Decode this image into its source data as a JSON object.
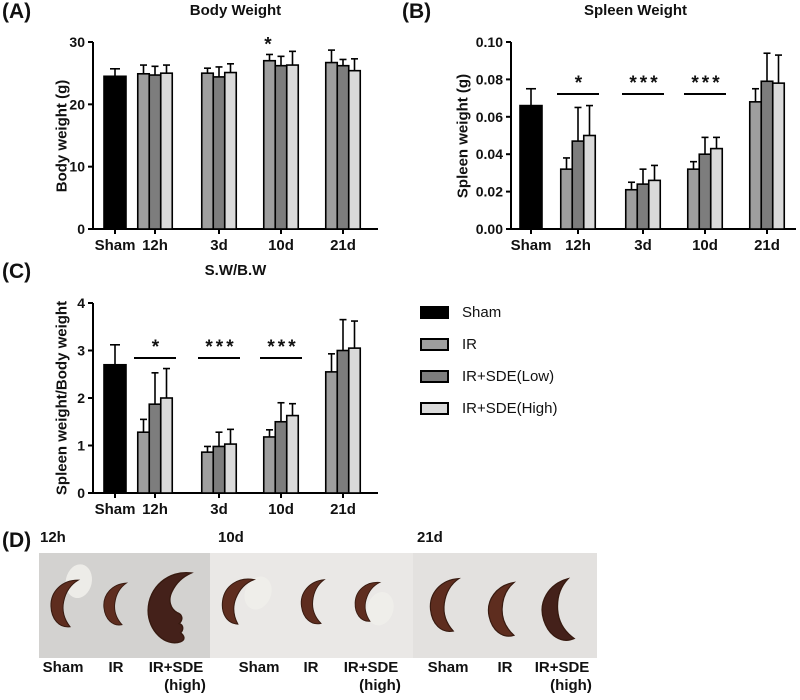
{
  "panels": {
    "a": {
      "label": "(A)"
    },
    "b": {
      "label": "(B)"
    },
    "c": {
      "label": "(C)"
    },
    "d": {
      "label": "(D)"
    }
  },
  "legend": {
    "items": [
      {
        "label": "Sham",
        "color": "#000000"
      },
      {
        "label": "IR",
        "color": "#9e9e9e"
      },
      {
        "label": "IR+SDE(Low)",
        "color": "#7d7d7d"
      },
      {
        "label": "IR+SDE(High)",
        "color": "#dadada"
      }
    ]
  },
  "chart_data": [
    {
      "id": "A",
      "type": "bar",
      "title": "Body Weight",
      "ylabel": "Body weight (g)",
      "ylim": [
        0,
        30
      ],
      "yticks": [
        0,
        10,
        20,
        30
      ],
      "ytick_labels": [
        "0",
        "10",
        "20",
        "30"
      ],
      "categories": [
        "Sham",
        "12h",
        "3d",
        "10d",
        "21d"
      ],
      "series_names": [
        "Sham",
        "IR",
        "IR+SDE(Low)",
        "IR+SDE(High)"
      ],
      "grid": false,
      "groups": [
        {
          "category": "Sham",
          "bars": [
            {
              "series": "Sham",
              "value": 24.5,
              "error": 1.2
            }
          ]
        },
        {
          "category": "12h",
          "bars": [
            {
              "series": "IR",
              "value": 24.9,
              "error": 1.4
            },
            {
              "series": "IR+SDE(Low)",
              "value": 24.7,
              "error": 1.4
            },
            {
              "series": "IR+SDE(High)",
              "value": 25.0,
              "error": 1.3
            }
          ]
        },
        {
          "category": "3d",
          "bars": [
            {
              "series": "IR",
              "value": 25.0,
              "error": 0.8
            },
            {
              "series": "IR+SDE(Low)",
              "value": 24.4,
              "error": 1.6
            },
            {
              "series": "IR+SDE(High)",
              "value": 25.1,
              "error": 1.4
            }
          ]
        },
        {
          "category": "10d",
          "bars": [
            {
              "series": "IR",
              "value": 27.0,
              "error": 1.0,
              "sig": "*"
            },
            {
              "series": "IR+SDE(Low)",
              "value": 26.2,
              "error": 1.5
            },
            {
              "series": "IR+SDE(High)",
              "value": 26.3,
              "error": 2.2
            }
          ]
        },
        {
          "category": "21d",
          "bars": [
            {
              "series": "IR",
              "value": 26.7,
              "error": 2.0
            },
            {
              "series": "IR+SDE(Low)",
              "value": 26.2,
              "error": 1.0
            },
            {
              "series": "IR+SDE(High)",
              "value": 25.4,
              "error": 1.9
            }
          ]
        }
      ]
    },
    {
      "id": "B",
      "type": "bar",
      "title": "Spleen Weight",
      "ylabel": "Spleen weight (g)",
      "ylim": [
        0,
        0.1
      ],
      "yticks": [
        0,
        0.02,
        0.04,
        0.06,
        0.08,
        0.1
      ],
      "ytick_labels": [
        "0.00",
        "0.02",
        "0.04",
        "0.06",
        "0.08",
        "0.10"
      ],
      "categories": [
        "Sham",
        "12h",
        "3d",
        "10d",
        "21d"
      ],
      "series_names": [
        "Sham",
        "IR",
        "IR+SDE(Low)",
        "IR+SDE(High)"
      ],
      "grid": false,
      "groups": [
        {
          "category": "Sham",
          "bars": [
            {
              "series": "Sham",
              "value": 0.066,
              "error": 0.009
            }
          ]
        },
        {
          "category": "12h",
          "sig": "*",
          "bars": [
            {
              "series": "IR",
              "value": 0.032,
              "error": 0.006
            },
            {
              "series": "IR+SDE(Low)",
              "value": 0.047,
              "error": 0.018
            },
            {
              "series": "IR+SDE(High)",
              "value": 0.05,
              "error": 0.016
            }
          ]
        },
        {
          "category": "3d",
          "sig": "***",
          "bars": [
            {
              "series": "IR",
              "value": 0.021,
              "error": 0.004
            },
            {
              "series": "IR+SDE(Low)",
              "value": 0.024,
              "error": 0.008
            },
            {
              "series": "IR+SDE(High)",
              "value": 0.026,
              "error": 0.008
            }
          ]
        },
        {
          "category": "10d",
          "sig": "***",
          "bars": [
            {
              "series": "IR",
              "value": 0.032,
              "error": 0.004
            },
            {
              "series": "IR+SDE(Low)",
              "value": 0.04,
              "error": 0.009
            },
            {
              "series": "IR+SDE(High)",
              "value": 0.043,
              "error": 0.006
            }
          ]
        },
        {
          "category": "21d",
          "bars": [
            {
              "series": "IR",
              "value": 0.068,
              "error": 0.007
            },
            {
              "series": "IR+SDE(Low)",
              "value": 0.079,
              "error": 0.015
            },
            {
              "series": "IR+SDE(High)",
              "value": 0.078,
              "error": 0.015
            }
          ]
        }
      ]
    },
    {
      "id": "C",
      "type": "bar",
      "title": "S.W/B.W",
      "ylabel": "Spleen weight/Body weight",
      "ylim": [
        0,
        4
      ],
      "yticks": [
        0,
        1,
        2,
        3,
        4
      ],
      "ytick_labels": [
        "0",
        "1",
        "2",
        "3",
        "4"
      ],
      "categories": [
        "Sham",
        "12h",
        "3d",
        "10d",
        "21d"
      ],
      "series_names": [
        "Sham",
        "IR",
        "IR+SDE(Low)",
        "IR+SDE(High)"
      ],
      "grid": false,
      "groups": [
        {
          "category": "Sham",
          "bars": [
            {
              "series": "Sham",
              "value": 2.7,
              "error": 0.42
            }
          ]
        },
        {
          "category": "12h",
          "sig": "*",
          "bars": [
            {
              "series": "IR",
              "value": 1.28,
              "error": 0.27
            },
            {
              "series": "IR+SDE(Low)",
              "value": 1.87,
              "error": 0.66
            },
            {
              "series": "IR+SDE(High)",
              "value": 2.0,
              "error": 0.62
            }
          ]
        },
        {
          "category": "3d",
          "sig": "***",
          "bars": [
            {
              "series": "IR",
              "value": 0.86,
              "error": 0.12
            },
            {
              "series": "IR+SDE(Low)",
              "value": 0.98,
              "error": 0.3
            },
            {
              "series": "IR+SDE(High)",
              "value": 1.03,
              "error": 0.31
            }
          ]
        },
        {
          "category": "10d",
          "sig": "***",
          "bars": [
            {
              "series": "IR",
              "value": 1.18,
              "error": 0.15
            },
            {
              "series": "IR+SDE(Low)",
              "value": 1.5,
              "error": 0.4
            },
            {
              "series": "IR+SDE(High)",
              "value": 1.63,
              "error": 0.25
            }
          ]
        },
        {
          "category": "21d",
          "bars": [
            {
              "series": "IR",
              "value": 2.55,
              "error": 0.38
            },
            {
              "series": "IR+SDE(Low)",
              "value": 3.0,
              "error": 0.65
            },
            {
              "series": "IR+SDE(High)",
              "value": 3.05,
              "error": 0.57
            }
          ]
        }
      ]
    }
  ],
  "panel_d": {
    "groups": [
      {
        "time": "12h",
        "samples": [
          {
            "name": "Sham"
          },
          {
            "name": "IR"
          },
          {
            "name": "IR+SDE",
            "sub": "(high)"
          }
        ]
      },
      {
        "time": "10d",
        "samples": [
          {
            "name": "Sham"
          },
          {
            "name": "IR"
          },
          {
            "name": "IR+SDE",
            "sub": "(high)"
          }
        ]
      },
      {
        "time": "21d",
        "samples": [
          {
            "name": "Sham"
          },
          {
            "name": "IR"
          },
          {
            "name": "IR+SDE",
            "sub": "(high)"
          }
        ]
      }
    ]
  },
  "colors": {
    "axis": "#000000",
    "bar_border": "#000000",
    "spleen_normal": "#5e2d1f",
    "spleen_dark": "#44211a",
    "photo_bg_12h": "#d3d2d0",
    "photo_bg_10d": "#eae8e6",
    "photo_bg_21d": "#e3e1df"
  }
}
